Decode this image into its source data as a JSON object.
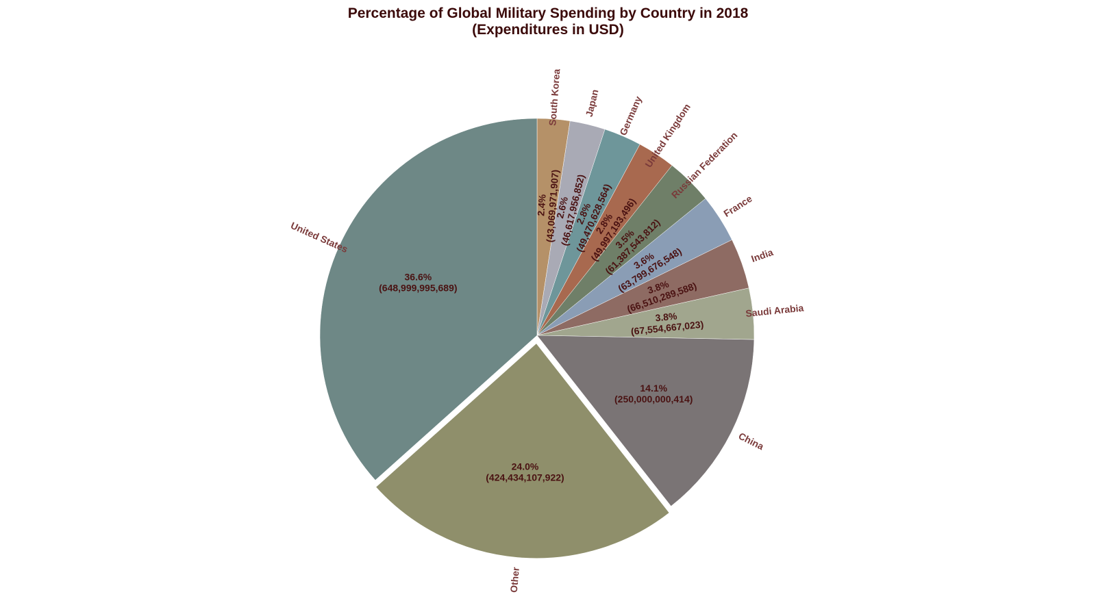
{
  "chart_data": {
    "type": "pie",
    "title_lines": [
      "Percentage of Global Military Spending by Country in 2018",
      "(Expenditures in USD)"
    ],
    "start_angle_deg": 90,
    "direction": "clockwise",
    "slices": [
      {
        "label": "South Korea",
        "value": 43069971907,
        "percent_label": "2.4%",
        "value_label": "(43,069,971,907)",
        "color": "#b59168",
        "explode": false
      },
      {
        "label": "Japan",
        "value": 46617956852,
        "percent_label": "2.6%",
        "value_label": "(46,617,956,852)",
        "color": "#a9aab5",
        "explode": false
      },
      {
        "label": "Germany",
        "value": 49470628564,
        "percent_label": "2.8%",
        "value_label": "(49,470,628,564)",
        "color": "#6e969a",
        "explode": false
      },
      {
        "label": "United Kingdom",
        "value": 49997193496,
        "percent_label": "2.8%",
        "value_label": "(49,997,193,496)",
        "color": "#a8694f",
        "explode": false
      },
      {
        "label": "Russian Federation",
        "value": 61387543812,
        "percent_label": "3.5%",
        "value_label": "(61,387,543,812)",
        "color": "#6f7f68",
        "explode": false
      },
      {
        "label": "France",
        "value": 63799676548,
        "percent_label": "3.6%",
        "value_label": "(63,799,676,548)",
        "color": "#8a9db5",
        "explode": false
      },
      {
        "label": "India",
        "value": 66510289588,
        "percent_label": "3.8%",
        "value_label": "(66,510,289,588)",
        "color": "#8e6b63",
        "explode": false
      },
      {
        "label": "Saudi Arabia",
        "value": 67554667023,
        "percent_label": "3.8%",
        "value_label": "(67,554,667,023)",
        "color": "#a1a68e",
        "explode": false
      },
      {
        "label": "China",
        "value": 250000000414,
        "percent_label": "14.1%",
        "value_label": "(250,000,000,414)",
        "color": "#7a7475",
        "explode": false
      },
      {
        "label": "Other",
        "value": 424434107922,
        "percent_label": "24.0%",
        "value_label": "(424,434,107,922)",
        "color": "#8f8f6b",
        "explode": true
      },
      {
        "label": "United States",
        "value": 648999995689,
        "percent_label": "36.6%",
        "value_label": "(648,999,995,689)",
        "color": "#6e8886",
        "explode": false
      }
    ]
  }
}
